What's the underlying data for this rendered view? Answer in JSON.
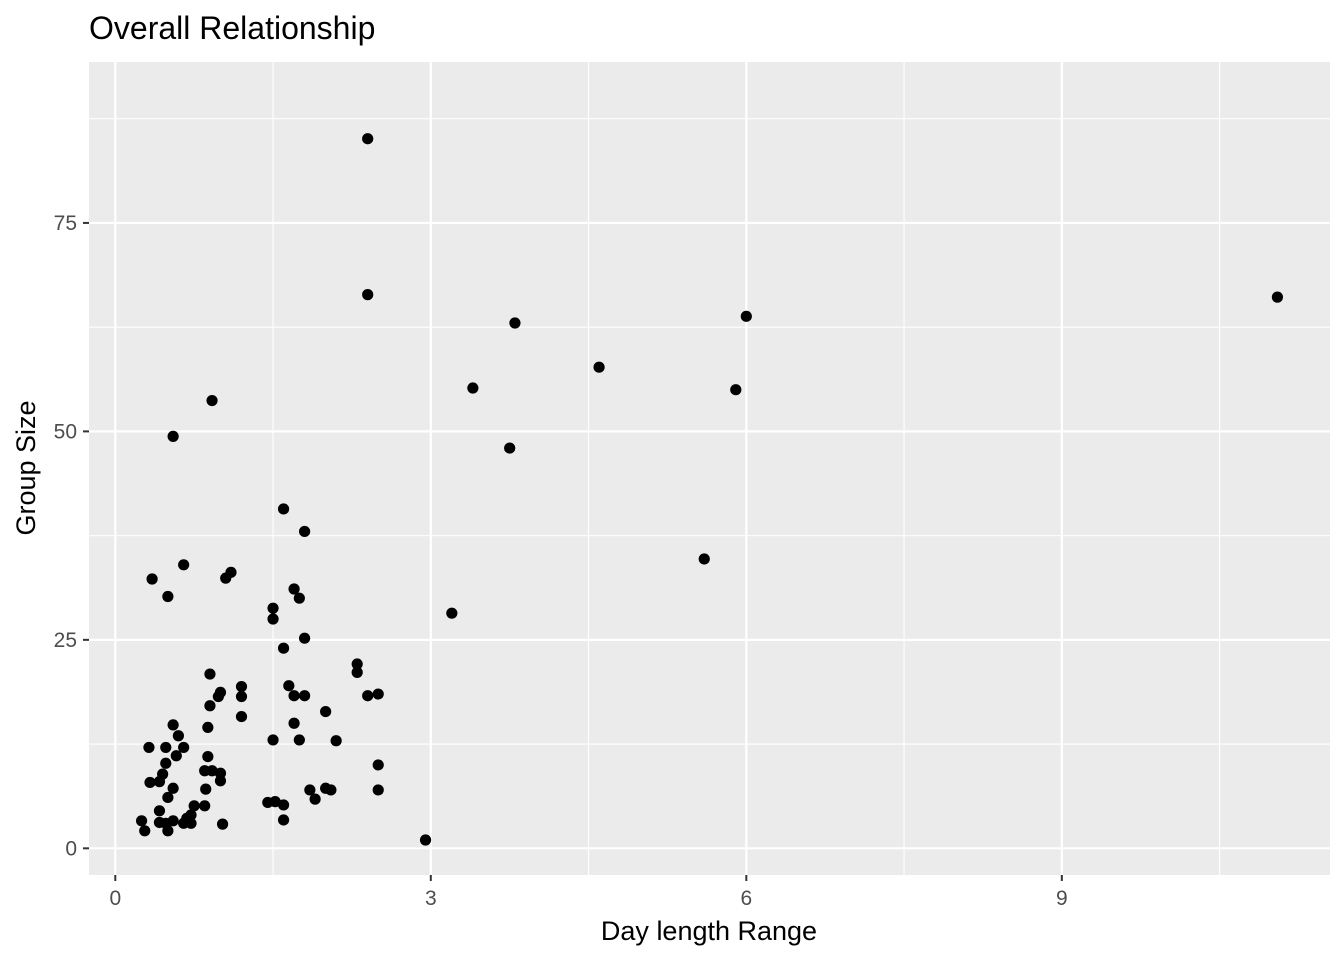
{
  "chart_data": {
    "type": "scatter",
    "title": "Overall Relationship",
    "xlabel": "Day length Range",
    "ylabel": "Group Size",
    "xlim": [
      -0.25,
      11.55
    ],
    "ylim": [
      -3.2,
      94.3
    ],
    "x_ticks": [
      0,
      3,
      6,
      9
    ],
    "y_ticks": [
      0,
      25,
      50,
      75
    ],
    "x_tick_labels": [
      "0",
      "3",
      "6",
      "9"
    ],
    "y_tick_labels": [
      "0",
      "25",
      "50",
      "75"
    ],
    "grid": true,
    "panel_color": "#ebebeb",
    "grid_color": "#ffffff",
    "point_color": "#000000",
    "points": [
      [
        2.4,
        85.1
      ],
      [
        2.4,
        66.4
      ],
      [
        11.05,
        66.1
      ],
      [
        6.0,
        63.8
      ],
      [
        3.8,
        63.0
      ],
      [
        4.6,
        57.7
      ],
      [
        3.4,
        55.2
      ],
      [
        5.9,
        55.0
      ],
      [
        0.92,
        53.7
      ],
      [
        0.55,
        49.4
      ],
      [
        3.75,
        48.0
      ],
      [
        1.6,
        40.7
      ],
      [
        1.8,
        38.0
      ],
      [
        5.6,
        34.7
      ],
      [
        0.65,
        34.0
      ],
      [
        1.1,
        33.1
      ],
      [
        1.05,
        32.4
      ],
      [
        0.35,
        32.3
      ],
      [
        1.7,
        31.1
      ],
      [
        0.5,
        30.2
      ],
      [
        1.75,
        30.0
      ],
      [
        1.5,
        28.8
      ],
      [
        3.2,
        28.2
      ],
      [
        1.5,
        27.5
      ],
      [
        1.8,
        25.2
      ],
      [
        1.6,
        24.0
      ],
      [
        2.3,
        22.1
      ],
      [
        2.3,
        21.1
      ],
      [
        0.9,
        20.9
      ],
      [
        1.65,
        19.5
      ],
      [
        1.2,
        19.4
      ],
      [
        1.0,
        18.7
      ],
      [
        0.98,
        18.2
      ],
      [
        1.7,
        18.3
      ],
      [
        1.8,
        18.3
      ],
      [
        1.2,
        18.2
      ],
      [
        2.4,
        18.3
      ],
      [
        2.5,
        18.5
      ],
      [
        0.9,
        17.1
      ],
      [
        2.0,
        16.4
      ],
      [
        1.2,
        15.8
      ],
      [
        0.55,
        14.8
      ],
      [
        1.7,
        15.0
      ],
      [
        0.88,
        14.5
      ],
      [
        0.6,
        13.5
      ],
      [
        1.5,
        13.0
      ],
      [
        1.75,
        13.0
      ],
      [
        2.1,
        12.9
      ],
      [
        0.32,
        12.1
      ],
      [
        0.48,
        12.1
      ],
      [
        0.65,
        12.1
      ],
      [
        0.58,
        11.1
      ],
      [
        0.88,
        11.0
      ],
      [
        0.48,
        10.2
      ],
      [
        2.5,
        10.0
      ],
      [
        0.85,
        9.3
      ],
      [
        0.92,
        9.3
      ],
      [
        1.0,
        9.0
      ],
      [
        0.45,
        8.9
      ],
      [
        0.33,
        7.9
      ],
      [
        0.42,
        8.0
      ],
      [
        1.0,
        8.1
      ],
      [
        0.55,
        7.2
      ],
      [
        0.86,
        7.1
      ],
      [
        1.85,
        7.0
      ],
      [
        2.0,
        7.2
      ],
      [
        2.05,
        7.0
      ],
      [
        2.5,
        7.0
      ],
      [
        0.5,
        6.1
      ],
      [
        1.9,
        5.9
      ],
      [
        1.45,
        5.5
      ],
      [
        1.52,
        5.6
      ],
      [
        1.6,
        5.2
      ],
      [
        0.75,
        5.1
      ],
      [
        0.85,
        5.1
      ],
      [
        0.42,
        4.5
      ],
      [
        0.72,
        4.0
      ],
      [
        0.68,
        3.6
      ],
      [
        0.25,
        3.3
      ],
      [
        0.42,
        3.1
      ],
      [
        0.48,
        3.0
      ],
      [
        0.55,
        3.3
      ],
      [
        0.65,
        3.0
      ],
      [
        0.72,
        3.0
      ],
      [
        1.6,
        3.4
      ],
      [
        1.02,
        2.9
      ],
      [
        0.28,
        2.1
      ],
      [
        0.5,
        2.1
      ],
      [
        2.95,
        1.0
      ]
    ]
  }
}
